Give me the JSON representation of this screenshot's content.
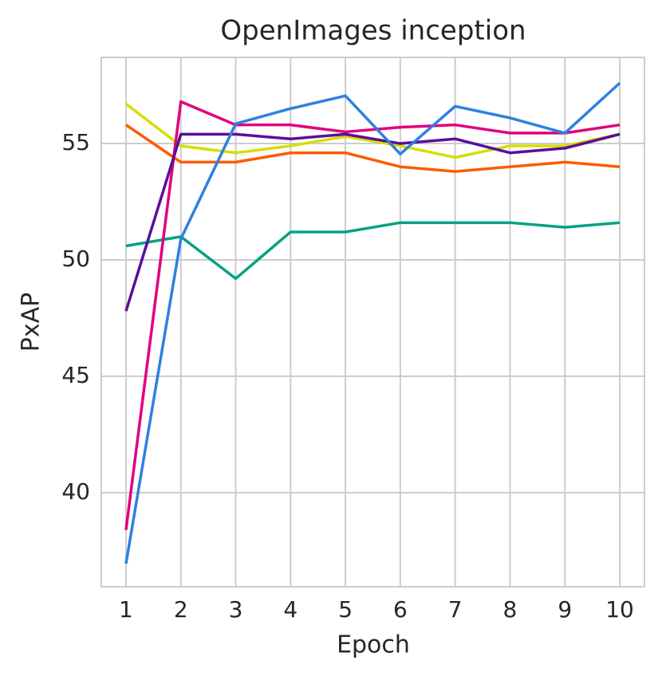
{
  "chart_data": {
    "type": "line",
    "title": "OpenImages inception",
    "x_label": "Epoch",
    "y_label": "PxAP",
    "x": [
      1,
      2,
      3,
      4,
      5,
      6,
      7,
      8,
      9,
      10
    ],
    "xlim": [
      0.55,
      10.45
    ],
    "xticks": [
      1,
      2,
      3,
      4,
      5,
      6,
      7,
      8,
      9,
      10
    ],
    "ylim": [
      35.96,
      58.7
    ],
    "yticks": [
      40,
      45,
      50,
      55
    ],
    "grid": true,
    "series": [
      {
        "color": "#00a383",
        "values": [
          50.6,
          51.0,
          49.2,
          51.2,
          51.2,
          51.6,
          51.6,
          51.6,
          51.4,
          51.6
        ]
      },
      {
        "color": "#ff5a00",
        "values": [
          55.8,
          54.2,
          54.2,
          54.6,
          54.6,
          54.0,
          53.8,
          54.0,
          54.2,
          54.0
        ]
      },
      {
        "color": "#d4df00",
        "values": [
          56.7,
          54.9,
          54.6,
          54.9,
          55.3,
          54.9,
          54.4,
          54.9,
          54.9,
          55.4
        ]
      },
      {
        "color": "#e0007f",
        "values": [
          38.4,
          56.8,
          55.8,
          55.8,
          55.5,
          55.7,
          55.8,
          55.45,
          55.45,
          55.8
        ]
      },
      {
        "color": "#5a0f9a",
        "values": [
          47.8,
          55.4,
          55.4,
          55.2,
          55.4,
          55.0,
          55.2,
          54.6,
          54.8,
          55.4
        ]
      },
      {
        "color": "#2f80e0",
        "values": [
          36.95,
          50.9,
          55.85,
          56.5,
          57.05,
          54.55,
          56.6,
          56.1,
          55.45,
          57.6
        ]
      }
    ]
  }
}
